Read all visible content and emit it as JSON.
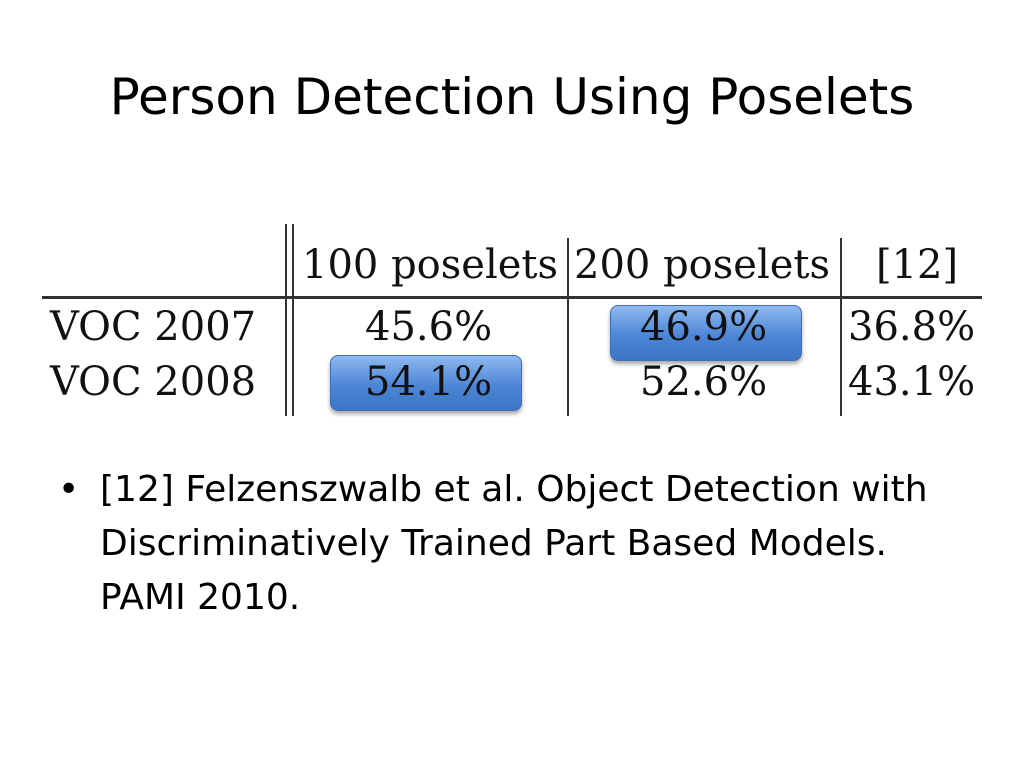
{
  "slide": {
    "title": "Person Detection Using Poselets"
  },
  "table": {
    "headers": [
      "100 poselets",
      "200 poselets",
      "[12]"
    ],
    "rows": [
      {
        "label": "VOC 2007",
        "values": [
          "45.6%",
          "46.9%",
          "36.8%"
        ]
      },
      {
        "label": "VOC 2008",
        "values": [
          "54.1%",
          "52.6%",
          "43.1%"
        ]
      }
    ],
    "highlight_color": "#4d86d6"
  },
  "bullets": [
    {
      "symbol": "•",
      "text": "[12] Felzenszwalb et al. Object Detection with Discriminatively Trained Part Based Models. PAMI 2010."
    }
  ]
}
